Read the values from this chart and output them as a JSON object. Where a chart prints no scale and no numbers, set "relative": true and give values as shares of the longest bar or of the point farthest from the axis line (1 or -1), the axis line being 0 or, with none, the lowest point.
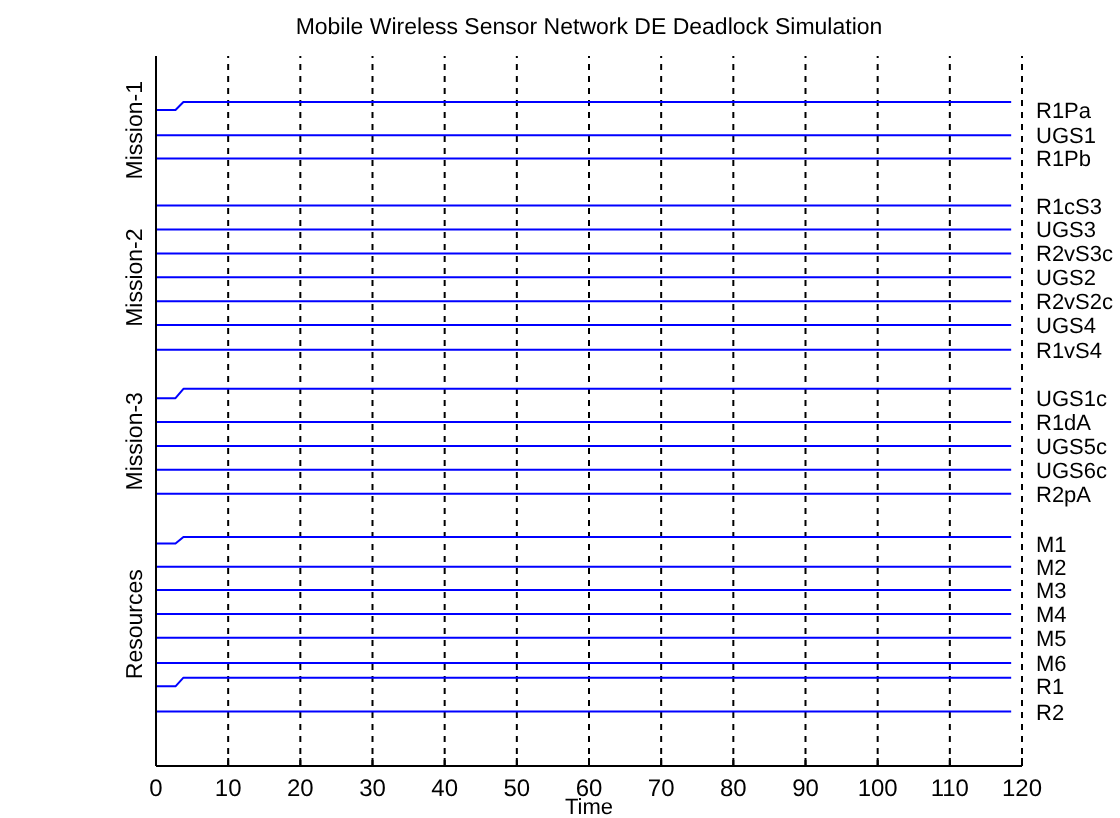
{
  "chart_data": {
    "type": "line",
    "title": "Mobile Wireless Sensor Network DE Deadlock Simulation",
    "xlabel": "Time",
    "relative": true,
    "xlim": [
      0,
      120
    ],
    "xticks": [
      0,
      10,
      20,
      30,
      40,
      50,
      60,
      70,
      80,
      90,
      100,
      110,
      120
    ],
    "grid": "x",
    "legend": false,
    "marker": "none",
    "line_style": "solid",
    "annotations": [
      "Mission-1",
      "Mission-2",
      "Mission-3",
      "Resources"
    ],
    "series": [
      {
        "name": "R1Pa",
        "color": "#0000ff",
        "x": [
          0,
          2.7,
          3.8,
          118.5
        ],
        "values": [
          0.988,
          0.988,
          1,
          1
        ]
      },
      {
        "name": "UGS1",
        "color": "#0000ff",
        "x": [
          0,
          118.5
        ],
        "values": [
          0.95,
          0.95
        ]
      },
      {
        "name": "R1Pb",
        "color": "#0000ff",
        "x": [
          0,
          118.5
        ],
        "values": [
          0.915,
          0.915
        ]
      },
      {
        "name": "R1cS3",
        "color": "#0000ff",
        "x": [
          0,
          118.5
        ],
        "values": [
          0.844,
          0.844
        ]
      },
      {
        "name": "UGS3",
        "color": "#0000ff",
        "x": [
          0,
          118.5
        ],
        "values": [
          0.808,
          0.808
        ]
      },
      {
        "name": "R2vS3c",
        "color": "#0000ff",
        "x": [
          0,
          118.5
        ],
        "values": [
          0.772,
          0.772
        ]
      },
      {
        "name": "UGS2",
        "color": "#0000ff",
        "x": [
          0,
          118.5
        ],
        "values": [
          0.736,
          0.736
        ]
      },
      {
        "name": "R2vS2c",
        "color": "#0000ff",
        "x": [
          0,
          118.5
        ],
        "values": [
          0.7,
          0.7
        ]
      },
      {
        "name": "UGS4",
        "color": "#0000ff",
        "x": [
          0,
          118.5
        ],
        "values": [
          0.664,
          0.664
        ]
      },
      {
        "name": "R1vS4",
        "color": "#0000ff",
        "x": [
          0,
          118.5
        ],
        "values": [
          0.627,
          0.627
        ]
      },
      {
        "name": "UGS1c",
        "color": "#0000ff",
        "x": [
          0,
          2.7,
          3.8,
          118.5
        ],
        "values": [
          0.554,
          0.554,
          0.568,
          0.568
        ]
      },
      {
        "name": "R1dA",
        "color": "#0000ff",
        "x": [
          0,
          118.5
        ],
        "values": [
          0.518,
          0.518
        ]
      },
      {
        "name": "UGS5c",
        "color": "#0000ff",
        "x": [
          0,
          118.5
        ],
        "values": [
          0.482,
          0.482
        ]
      },
      {
        "name": "UGS6c",
        "color": "#0000ff",
        "x": [
          0,
          118.5
        ],
        "values": [
          0.446,
          0.446
        ]
      },
      {
        "name": "R2pA",
        "color": "#0000ff",
        "x": [
          0,
          118.5
        ],
        "values": [
          0.41,
          0.41
        ]
      },
      {
        "name": "M1",
        "color": "#0000ff",
        "x": [
          0,
          2.7,
          3.8,
          118.5
        ],
        "values": [
          0.335,
          0.335,
          0.345,
          0.345
        ]
      },
      {
        "name": "M2",
        "color": "#0000ff",
        "x": [
          0,
          118.5
        ],
        "values": [
          0.3,
          0.3
        ]
      },
      {
        "name": "M3",
        "color": "#0000ff",
        "x": [
          0,
          118.5
        ],
        "values": [
          0.265,
          0.265
        ]
      },
      {
        "name": "M4",
        "color": "#0000ff",
        "x": [
          0,
          118.5
        ],
        "values": [
          0.229,
          0.229
        ]
      },
      {
        "name": "M5",
        "color": "#0000ff",
        "x": [
          0,
          118.5
        ],
        "values": [
          0.193,
          0.193
        ]
      },
      {
        "name": "M6",
        "color": "#0000ff",
        "x": [
          0,
          118.5
        ],
        "values": [
          0.155,
          0.155
        ]
      },
      {
        "name": "R1",
        "color": "#0000ff",
        "x": [
          0,
          2.7,
          3.8,
          118.5
        ],
        "values": [
          0.12,
          0.12,
          0.133,
          0.133
        ]
      },
      {
        "name": "R2",
        "color": "#0000ff",
        "x": [
          0,
          118.5
        ],
        "values": [
          0.082,
          0.082
        ]
      }
    ]
  }
}
